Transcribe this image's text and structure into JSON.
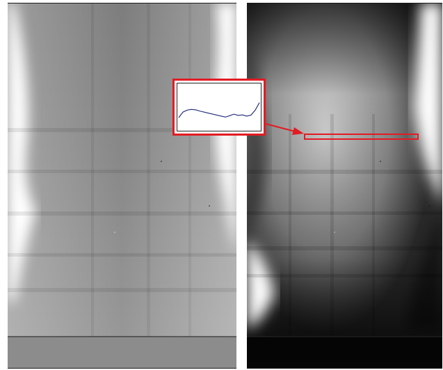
{
  "images": {
    "left": {
      "name": "xray-low-contrast"
    },
    "right": {
      "name": "xray-high-contrast"
    }
  },
  "colors": {
    "highlight": "#e31b23",
    "profile_line": "#1f2a7a",
    "left_background": "#8e8e8e",
    "right_background": "#3a3a3a"
  },
  "intensity_profile": {
    "points": [
      0,
      0.22,
      0.3,
      0.33,
      0.31,
      0.26,
      0.22,
      0.18,
      0.14,
      0.1,
      0.06,
      0.02,
      0.08,
      0.14,
      0.09,
      0.11,
      0.06,
      0.1,
      0.3,
      0.6
    ]
  }
}
